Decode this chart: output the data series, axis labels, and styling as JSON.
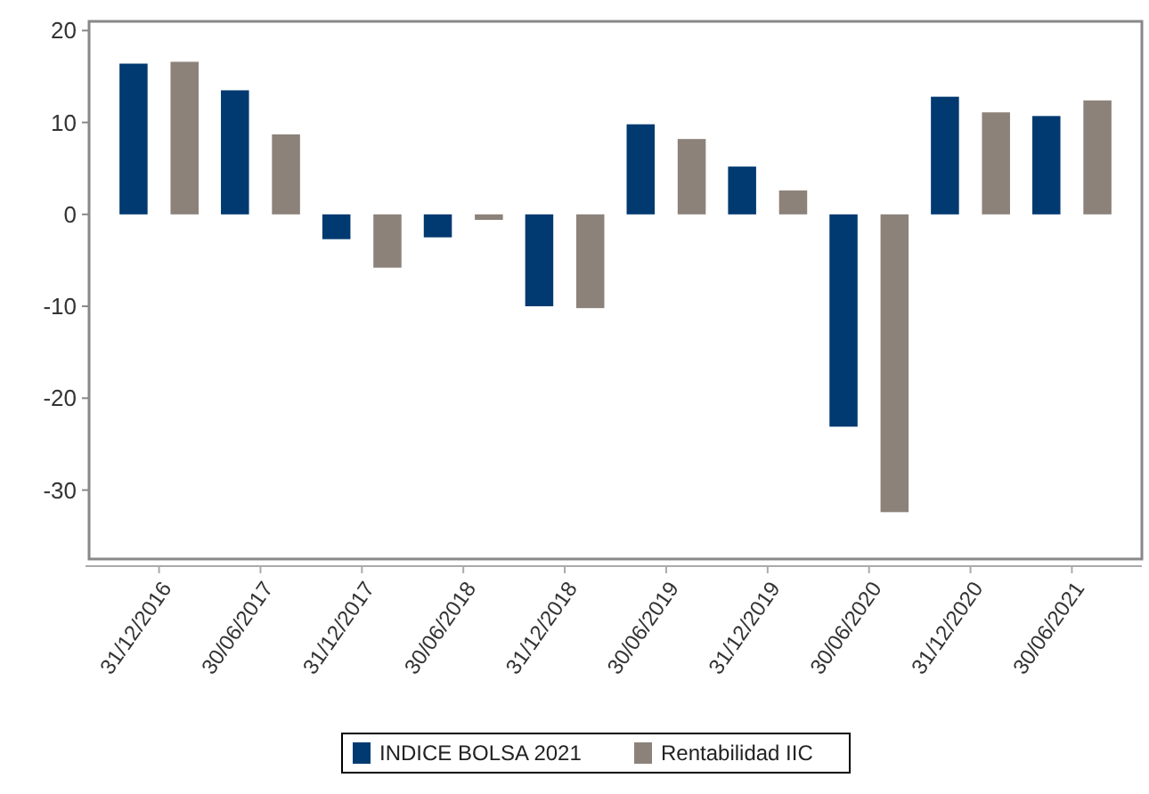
{
  "chart_data": {
    "type": "bar",
    "categories": [
      "31/12/2016",
      "30/06/2017",
      "31/12/2017",
      "30/06/2018",
      "31/12/2018",
      "30/06/2019",
      "31/12/2019",
      "30/06/2020",
      "31/12/2020",
      "30/06/2021"
    ],
    "series": [
      {
        "name": "INDICE BOLSA 2021",
        "color": "#003a70",
        "values": [
          16.4,
          13.5,
          -2.7,
          -2.5,
          -10.0,
          9.8,
          5.2,
          -23.1,
          12.8,
          10.7
        ]
      },
      {
        "name": "Rentabilidad IIC",
        "color": "#8c827a",
        "values": [
          16.6,
          8.7,
          -5.8,
          -0.6,
          -10.2,
          8.2,
          2.6,
          -32.4,
          11.1,
          12.4
        ]
      }
    ],
    "ylim": [
      -37.5,
      21
    ],
    "yticks": [
      -30,
      -20,
      -10,
      0,
      10,
      20
    ],
    "grid": false,
    "legend": "bottom"
  }
}
